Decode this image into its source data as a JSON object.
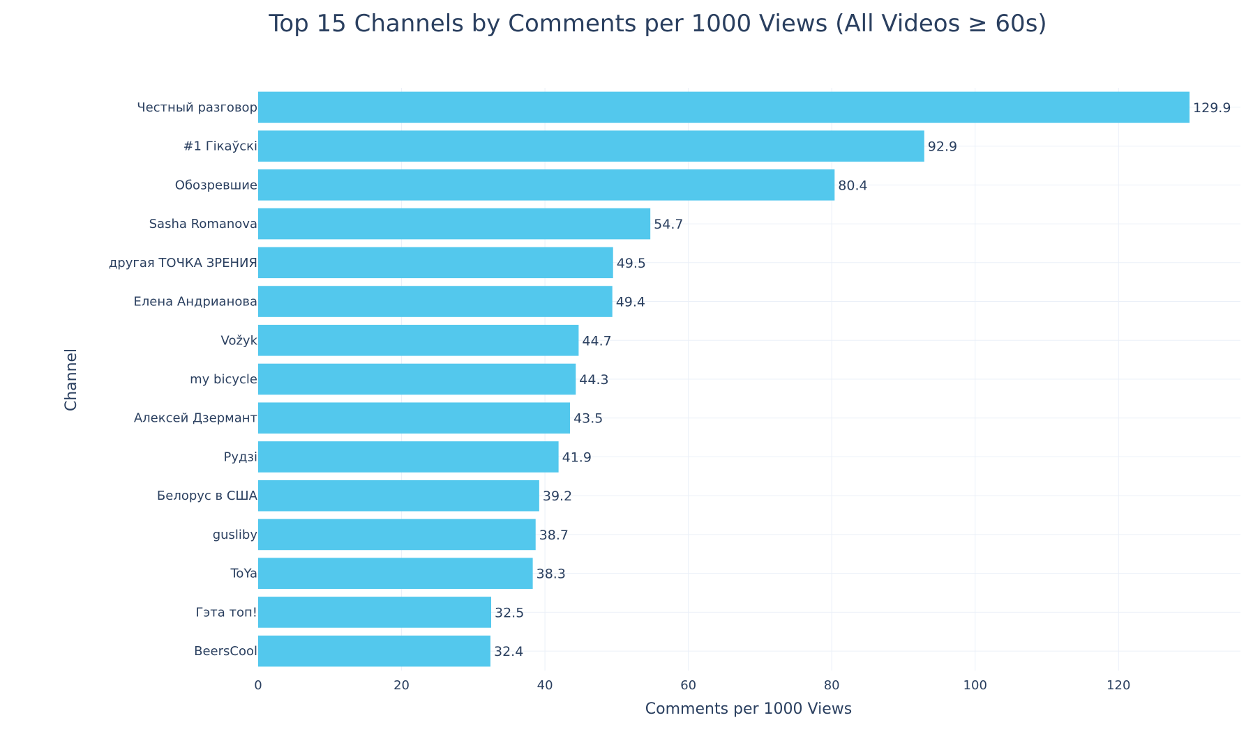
{
  "chart_data": {
    "type": "bar",
    "orientation": "horizontal",
    "title": "Top 15 Channels by Comments per 1000 Views (All Videos ≥ 60s)",
    "xlabel": "Comments per 1000 Views",
    "ylabel": "Channel",
    "xlim": [
      0,
      137
    ],
    "xticks": [
      0,
      20,
      40,
      60,
      80,
      100,
      120
    ],
    "grid": true,
    "categories": [
      "Честный разговор",
      "#1 Гікаўскі",
      "Обозревшие",
      "Sasha Romanova",
      "другая ТОЧКА ЗРЕНИЯ",
      "Елена Андрианова",
      "Vožyk",
      "my bicycle",
      "Алексей Дзермант",
      "Рудзі",
      "Белорус в США",
      "gusliby",
      "ToYa",
      "Гэта топ!",
      "BeersCool"
    ],
    "values": [
      129.9,
      92.9,
      80.4,
      54.7,
      49.5,
      49.4,
      44.7,
      44.3,
      43.5,
      41.9,
      39.2,
      38.7,
      38.3,
      32.5,
      32.4
    ],
    "value_labels": [
      "129.9",
      "92.9",
      "80.4",
      "54.7",
      "49.5",
      "49.4",
      "44.7",
      "44.3",
      "43.5",
      "41.9",
      "39.2",
      "38.7",
      "38.3",
      "32.5",
      "32.4"
    ],
    "bar_color": "#53c8ed",
    "text_color": "#2a3f5f",
    "grid_color": "#ebf0f8"
  }
}
